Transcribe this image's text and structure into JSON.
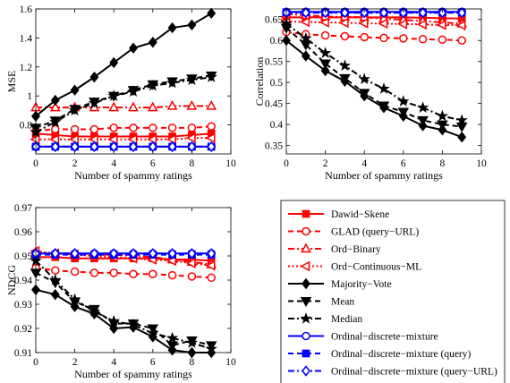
{
  "chart_data": [
    {
      "type": "line",
      "xlabel": "Number of spammy ratings",
      "ylabel": "MSE",
      "xlim": [
        0,
        10
      ],
      "ylim": [
        0.6,
        1.6
      ],
      "xticks": [
        0,
        2,
        4,
        6,
        8,
        10
      ],
      "yticks": [
        0.8,
        1.0,
        1.2,
        1.4,
        1.6
      ],
      "ytick_labels": [
        "0.8",
        "1",
        "1.2",
        "1.4",
        "1.6"
      ],
      "x": [
        0,
        1,
        2,
        3,
        4,
        5,
        6,
        7,
        8,
        9
      ],
      "series": [
        {
          "key": "dawid",
          "values": [
            0.74,
            0.73,
            0.72,
            0.72,
            0.72,
            0.72,
            0.72,
            0.72,
            0.73,
            0.74
          ]
        },
        {
          "key": "glad",
          "values": [
            0.76,
            0.77,
            0.77,
            0.77,
            0.78,
            0.78,
            0.78,
            0.78,
            0.78,
            0.79
          ]
        },
        {
          "key": "ordbin",
          "values": [
            0.92,
            0.92,
            0.92,
            0.92,
            0.92,
            0.92,
            0.92,
            0.93,
            0.93,
            0.93
          ]
        },
        {
          "key": "ordcont",
          "values": [
            0.7,
            0.7,
            0.7,
            0.7,
            0.7,
            0.7,
            0.7,
            0.7,
            0.71,
            0.71
          ]
        },
        {
          "key": "majority",
          "values": [
            0.86,
            0.97,
            1.04,
            1.13,
            1.23,
            1.33,
            1.37,
            1.47,
            1.49,
            1.57
          ]
        },
        {
          "key": "mean",
          "values": [
            0.78,
            0.83,
            0.91,
            0.96,
            1.0,
            1.04,
            1.08,
            1.1,
            1.12,
            1.14
          ]
        },
        {
          "key": "median",
          "values": [
            0.75,
            0.82,
            0.9,
            0.95,
            1.0,
            1.03,
            1.07,
            1.09,
            1.11,
            1.13
          ]
        },
        {
          "key": "odm",
          "values": [
            0.65,
            0.65,
            0.65,
            0.65,
            0.65,
            0.65,
            0.65,
            0.65,
            0.65,
            0.65
          ]
        },
        {
          "key": "odmq",
          "values": [
            0.65,
            0.65,
            0.65,
            0.65,
            0.65,
            0.65,
            0.65,
            0.65,
            0.65,
            0.65
          ]
        },
        {
          "key": "odmqu",
          "values": [
            0.65,
            0.65,
            0.65,
            0.65,
            0.65,
            0.65,
            0.65,
            0.65,
            0.65,
            0.65
          ]
        }
      ]
    },
    {
      "type": "line",
      "xlabel": "Number of spammy ratings",
      "ylabel": "Correlation",
      "xlim": [
        0,
        10
      ],
      "ylim": [
        0.33,
        0.675
      ],
      "xticks": [
        0,
        2,
        4,
        6,
        8,
        10
      ],
      "yticks": [
        0.35,
        0.4,
        0.45,
        0.5,
        0.55,
        0.6,
        0.65
      ],
      "ytick_labels": [
        "0.35",
        "0.4",
        "0.45",
        "0.5",
        "0.55",
        "0.6",
        "0.65"
      ],
      "x": [
        0,
        1,
        2,
        3,
        4,
        5,
        6,
        7,
        8,
        9
      ],
      "series": [
        {
          "key": "dawid",
          "values": [
            0.655,
            0.655,
            0.655,
            0.655,
            0.655,
            0.655,
            0.655,
            0.654,
            0.653,
            0.652
          ]
        },
        {
          "key": "glad",
          "values": [
            0.62,
            0.615,
            0.612,
            0.61,
            0.608,
            0.606,
            0.605,
            0.603,
            0.602,
            0.6
          ]
        },
        {
          "key": "ordbin",
          "values": [
            0.663,
            0.66,
            0.657,
            0.656,
            0.655,
            0.652,
            0.649,
            0.646,
            0.643,
            0.64
          ]
        },
        {
          "key": "ordcont",
          "values": [
            0.645,
            0.644,
            0.643,
            0.642,
            0.641,
            0.64,
            0.639,
            0.638,
            0.637,
            0.636
          ]
        },
        {
          "key": "majority",
          "values": [
            0.6,
            0.563,
            0.528,
            0.503,
            0.468,
            0.44,
            0.42,
            0.397,
            0.387,
            0.37
          ]
        },
        {
          "key": "mean",
          "values": [
            0.63,
            0.59,
            0.545,
            0.51,
            0.475,
            0.445,
            0.43,
            0.41,
            0.4,
            0.395
          ]
        },
        {
          "key": "median",
          "values": [
            0.64,
            0.605,
            0.57,
            0.54,
            0.508,
            0.485,
            0.455,
            0.44,
            0.42,
            0.41
          ]
        },
        {
          "key": "odm",
          "values": [
            0.668,
            0.668,
            0.668,
            0.668,
            0.668,
            0.668,
            0.668,
            0.668,
            0.668,
            0.668
          ]
        },
        {
          "key": "odmq",
          "values": [
            0.667,
            0.667,
            0.667,
            0.667,
            0.667,
            0.667,
            0.667,
            0.667,
            0.667,
            0.667
          ]
        },
        {
          "key": "odmqu",
          "values": [
            0.666,
            0.666,
            0.666,
            0.666,
            0.666,
            0.666,
            0.666,
            0.666,
            0.666,
            0.666
          ]
        }
      ]
    },
    {
      "type": "line",
      "xlabel": "Number of spammy ratings",
      "ylabel": "NDCG",
      "xlim": [
        0,
        10
      ],
      "ylim": [
        0.91,
        0.97
      ],
      "xticks": [
        0,
        2,
        4,
        6,
        8,
        10
      ],
      "yticks": [
        0.91,
        0.92,
        0.93,
        0.94,
        0.95,
        0.96,
        0.97
      ],
      "ytick_labels": [
        "0.91",
        "0.92",
        "0.93",
        "0.94",
        "0.95",
        "0.96",
        "0.97"
      ],
      "x": [
        0,
        1,
        2,
        3,
        4,
        5,
        6,
        7,
        8,
        9
      ],
      "series": [
        {
          "key": "dawid",
          "values": [
            0.9495,
            0.9495,
            0.949,
            0.949,
            0.949,
            0.949,
            0.949,
            0.9485,
            0.9485,
            0.948
          ]
        },
        {
          "key": "glad",
          "values": [
            0.945,
            0.944,
            0.9435,
            0.943,
            0.943,
            0.9425,
            0.9425,
            0.942,
            0.9415,
            0.941
          ]
        },
        {
          "key": "ordbin",
          "values": [
            0.9515,
            0.951,
            0.951,
            0.9505,
            0.9505,
            0.95,
            0.9495,
            0.9485,
            0.9475,
            0.9465
          ]
        },
        {
          "key": "ordcont",
          "values": [
            0.952,
            0.951,
            0.9505,
            0.95,
            0.9495,
            0.949,
            0.9485,
            0.948,
            0.947,
            0.946
          ]
        },
        {
          "key": "majority",
          "values": [
            0.936,
            0.934,
            0.929,
            0.926,
            0.92,
            0.9205,
            0.9165,
            0.911,
            0.91,
            0.91
          ]
        },
        {
          "key": "mean",
          "values": [
            0.943,
            0.939,
            0.931,
            0.928,
            0.922,
            0.922,
            0.92,
            0.913,
            0.915,
            0.913
          ]
        },
        {
          "key": "median",
          "values": [
            0.948,
            0.94,
            0.932,
            0.927,
            0.923,
            0.9215,
            0.918,
            0.916,
            0.914,
            0.9115
          ]
        },
        {
          "key": "odm",
          "values": [
            0.951,
            0.951,
            0.951,
            0.951,
            0.951,
            0.951,
            0.951,
            0.951,
            0.951,
            0.951
          ]
        },
        {
          "key": "odmq",
          "values": [
            0.9505,
            0.9505,
            0.9505,
            0.9505,
            0.9505,
            0.9505,
            0.9505,
            0.9505,
            0.9505,
            0.9505
          ]
        },
        {
          "key": "odmqu",
          "values": [
            0.951,
            0.951,
            0.951,
            0.951,
            0.951,
            0.951,
            0.951,
            0.951,
            0.951,
            0.951
          ]
        }
      ]
    }
  ],
  "legend": {
    "placement": "bottom-right",
    "entries": [
      {
        "key": "dawid",
        "name": "Dawid−Skene",
        "color": "#ff0000",
        "dash": "solid",
        "marker": "square",
        "fill": true
      },
      {
        "key": "glad",
        "name": "GLAD (query−URL)",
        "color": "#ff0000",
        "dash": "dashed",
        "marker": "circle",
        "fill": false
      },
      {
        "key": "ordbin",
        "name": "Ord−Binary",
        "color": "#ff0000",
        "dash": "dashdot",
        "marker": "triangle-up",
        "fill": false
      },
      {
        "key": "ordcont",
        "name": "Ord−Continuous−ML",
        "color": "#ff0000",
        "dash": "dotted",
        "marker": "triangle-left",
        "fill": false
      },
      {
        "key": "majority",
        "name": "Majority−Vote",
        "color": "#000000",
        "dash": "solid",
        "marker": "diamond",
        "fill": true
      },
      {
        "key": "mean",
        "name": "Mean",
        "color": "#000000",
        "dash": "dashed",
        "marker": "triangle-down",
        "fill": true
      },
      {
        "key": "median",
        "name": "Median",
        "color": "#000000",
        "dash": "dashdot",
        "marker": "star",
        "fill": true
      },
      {
        "key": "odm",
        "name": "Ordinal−discrete−mixture",
        "color": "#0000ff",
        "dash": "solid",
        "marker": "circle",
        "fill": false
      },
      {
        "key": "odmq",
        "name": "Ordinal−discrete−mixture (query)",
        "color": "#0000ff",
        "dash": "dashed",
        "marker": "square",
        "fill": true
      },
      {
        "key": "odmqu",
        "name": "Ordinal−discrete−mixture (query−URL)",
        "color": "#0000ff",
        "dash": "dashdot",
        "marker": "diamond",
        "fill": false
      }
    ]
  }
}
